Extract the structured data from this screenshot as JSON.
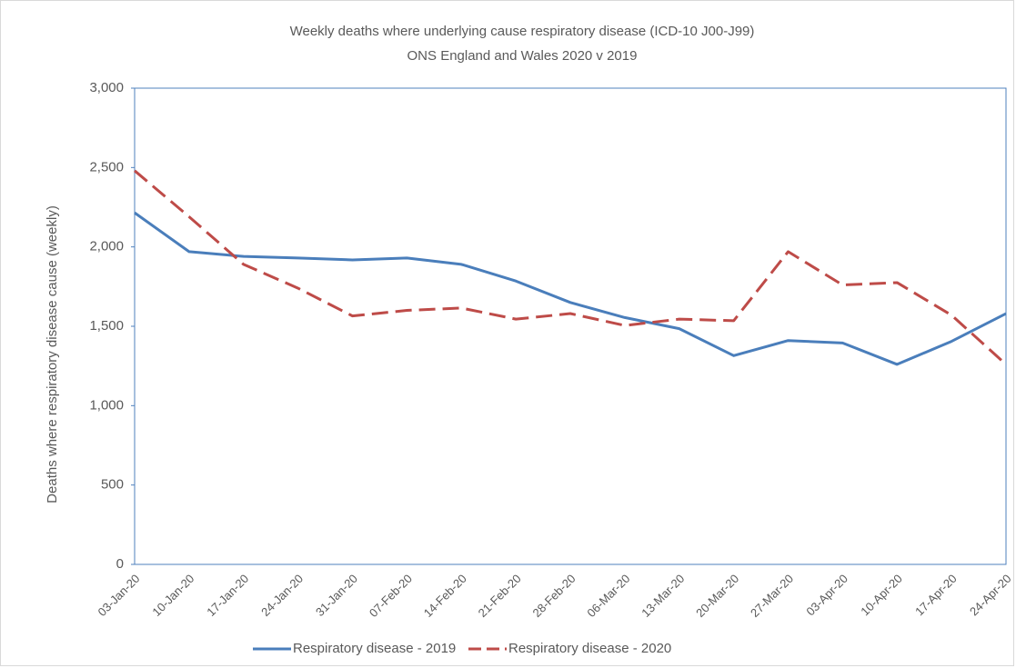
{
  "chart_data": {
    "type": "line",
    "title": "Weekly deaths where underlying cause respiratory disease (ICD-10 J00-J99)",
    "subtitle": "ONS England and Wales 2020 v 2019",
    "y_label": "Deaths where respiratory disease cause (weekly)",
    "categories": [
      "03-Jan-20",
      "10-Jan-20",
      "17-Jan-20",
      "24-Jan-20",
      "31-Jan-20",
      "07-Feb-20",
      "14-Feb-20",
      "21-Feb-20",
      "28-Feb-20",
      "06-Mar-20",
      "13-Mar-20",
      "20-Mar-20",
      "27-Mar-20",
      "03-Apr-20",
      "10-Apr-20",
      "17-Apr-20",
      "24-Apr-20"
    ],
    "series": [
      {
        "name": "Respiratory disease - 2019",
        "color": "#4a7ebb",
        "dashed": false,
        "values": [
          2215,
          1970,
          1940,
          1930,
          1918,
          1930,
          1890,
          1785,
          1650,
          1555,
          1485,
          1315,
          1410,
          1395,
          1260,
          1405,
          1580
        ]
      },
      {
        "name": "Respiratory disease - 2020",
        "color": "#be4b48",
        "dashed": true,
        "values": [
          2480,
          2190,
          1890,
          1740,
          1565,
          1600,
          1615,
          1545,
          1580,
          1505,
          1545,
          1535,
          1970,
          1760,
          1775,
          1570,
          1260
        ]
      }
    ],
    "ylim": [
      0,
      3000
    ],
    "yticks": [
      0,
      500,
      {
        "value": 1000,
        "label": "1,000"
      },
      {
        "value": 1500,
        "label": "1,500"
      },
      {
        "value": 2000,
        "label": "2,000"
      },
      {
        "value": 2500,
        "label": "2,500"
      },
      {
        "value": 3000,
        "label": "3,000"
      }
    ],
    "legend": "bottom"
  }
}
